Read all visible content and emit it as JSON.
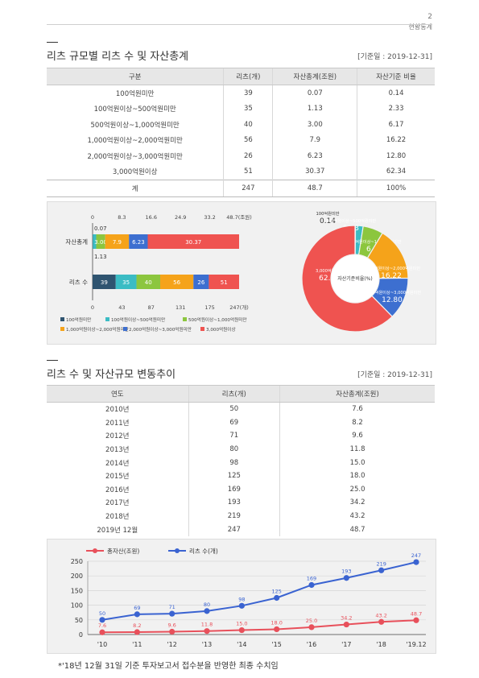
{
  "header": {
    "page_number": "2",
    "section": "현황통계"
  },
  "section1": {
    "title": "리츠 규모별 리츠 수 및 자산총계",
    "base_date": "[기준일 : 2019-12-31]",
    "columns": [
      "구분",
      "리츠(개)",
      "자산총계(조원)",
      "자산기준 비율"
    ],
    "rows": [
      [
        "100억원미만",
        "39",
        "0.07",
        "0.14"
      ],
      [
        "100억원이상~500억원미만",
        "35",
        "1.13",
        "2.33"
      ],
      [
        "500억원이상~1,000억원미만",
        "40",
        "3.00",
        "6.17"
      ],
      [
        "1,000억원이상~2,000억원미만",
        "56",
        "7.9",
        "16.22"
      ],
      [
        "2,000억원이상~3,000억원미만",
        "26",
        "6.23",
        "12.80"
      ],
      [
        "3,000억원이상",
        "51",
        "30.37",
        "62.34"
      ]
    ],
    "total": [
      "계",
      "247",
      "48.7",
      "100%"
    ]
  },
  "section2": {
    "title": "리츠 수 및 자산규모 변동추이",
    "base_date": "[기준일 : 2019-12-31]",
    "columns": [
      "연도",
      "리츠(개)",
      "자산총계(조원)"
    ],
    "rows": [
      [
        "2010년",
        "50",
        "7.6"
      ],
      [
        "2011년",
        "69",
        "8.2"
      ],
      [
        "2012년",
        "71",
        "9.6"
      ],
      [
        "2013년",
        "80",
        "11.8"
      ],
      [
        "2014년",
        "98",
        "15.0"
      ],
      [
        "2015년",
        "125",
        "18.0"
      ],
      [
        "2016년",
        "169",
        "25.0"
      ],
      [
        "2017년",
        "193",
        "34.2"
      ],
      [
        "2018년",
        "219",
        "43.2"
      ],
      [
        "2019년 12월",
        "247",
        "48.7"
      ]
    ]
  },
  "footnote": "*'18년 12월 31일 기준 투자보고서 접수분을 반영한 최종 수치임",
  "chart_data": [
    {
      "type": "bar",
      "orientation": "horizontal-stacked",
      "categories": [
        "자산총계",
        "리츠 수"
      ],
      "series": [
        {
          "name": "100억원미만",
          "color": "#2f5470",
          "values": [
            0.07,
            39
          ],
          "labels": [
            "0.07",
            "39"
          ]
        },
        {
          "name": "100억원이상~500억원미만",
          "color": "#3bbcc4",
          "values": [
            1.13,
            35
          ],
          "labels": [
            "1.13",
            "35"
          ]
        },
        {
          "name": "500억원이상~1,000억원미만",
          "color": "#8cc63e",
          "values": [
            3.0,
            40
          ],
          "labels": [
            "3.00",
            "40"
          ]
        },
        {
          "name": "1,000억원이상~2,000억원미만",
          "color": "#f5a31a",
          "values": [
            7.9,
            56
          ],
          "labels": [
            "7.9",
            "56"
          ]
        },
        {
          "name": "2,000억원이상~3,000억원미만",
          "color": "#3d6fd0",
          "values": [
            6.23,
            26
          ],
          "labels": [
            "6.23",
            "26"
          ]
        },
        {
          "name": "3,000억원이상",
          "color": "#ef5350",
          "values": [
            30.37,
            51
          ],
          "labels": [
            "30.37",
            "51"
          ]
        }
      ],
      "top_axis": {
        "ticks": [
          "0",
          "8.3",
          "16.6",
          "24.9",
          "33.2",
          "48.7(조원)"
        ],
        "max": 48.7
      },
      "bottom_axis": {
        "ticks": [
          "0",
          "43",
          "87",
          "131",
          "175",
          "247(개)"
        ],
        "max": 247
      },
      "legend_position": "bottom"
    },
    {
      "type": "pie",
      "variant": "donut",
      "center_label": "자산기준비율(%)",
      "slices": [
        {
          "name": "100억원미만",
          "value": 0.14,
          "label": "0.14",
          "color": "#2f5470"
        },
        {
          "name": "100억원이상~500억원미만",
          "value": 2.33,
          "label": "2.33",
          "color": "#3bbcc4"
        },
        {
          "name": "500억원이상~1,000억원미만",
          "value": 6.17,
          "label": "6.17",
          "color": "#8cc63e"
        },
        {
          "name": "1,000억원이상~2,000억원미만",
          "value": 16.22,
          "label": "16.22",
          "color": "#f5a31a"
        },
        {
          "name": "2,000억원이상~3,000억원미만",
          "value": 12.8,
          "label": "12.80",
          "color": "#3d6fd0"
        },
        {
          "name": "3,000억원이상",
          "value": 62.34,
          "label": "62.34",
          "color": "#ef5350"
        }
      ]
    },
    {
      "type": "line",
      "categories": [
        "'10",
        "'11",
        "'12",
        "'13",
        "'14",
        "'15",
        "'16",
        "'17",
        "'18",
        "'19.12"
      ],
      "series": [
        {
          "name": "총자산(조원)",
          "color": "#e8505b",
          "values": [
            7.6,
            8.2,
            9.6,
            11.8,
            15.0,
            18.0,
            25.0,
            34.2,
            43.2,
            48.7
          ],
          "labels": [
            "7.6",
            "8.2",
            "9.6",
            "11.8",
            "15.0",
            "18.0",
            "25.0",
            "34.2",
            "43.2",
            "48.7"
          ]
        },
        {
          "name": "리츠 수(개)",
          "color": "#3a63d1",
          "values": [
            50,
            69,
            71,
            80,
            98,
            125,
            169,
            193,
            219,
            247
          ],
          "labels": [
            "50",
            "69",
            "71",
            "80",
            "98",
            "125",
            "169",
            "193",
            "219",
            "247"
          ]
        }
      ],
      "y_ticks": [
        "0",
        "50",
        "100",
        "150",
        "200",
        "250"
      ],
      "ylim": [
        0,
        250
      ],
      "grid": true,
      "legend_position": "top-left"
    }
  ]
}
